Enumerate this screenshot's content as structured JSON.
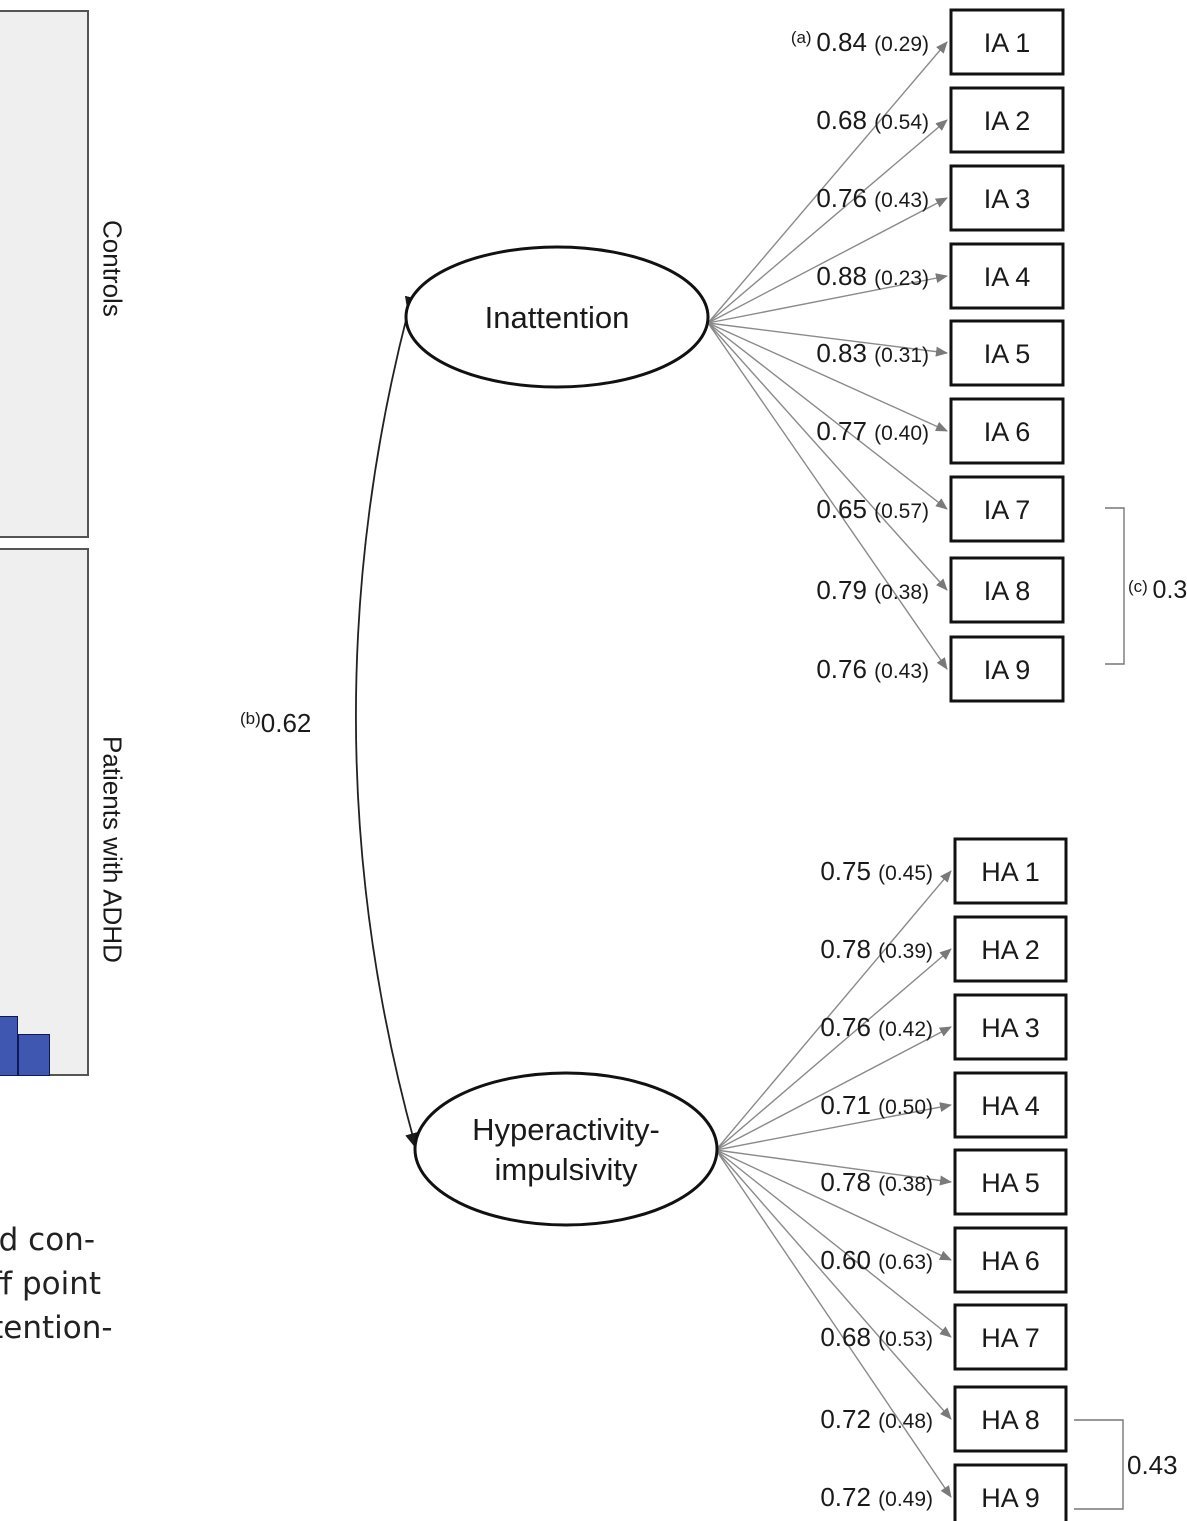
{
  "left_panels": {
    "top_label": "Controls",
    "bottom_label": "Patients with ADHD",
    "bar_color": "#3f57b0"
  },
  "caption_fragment": {
    "line1": "and con-",
    "line2": "-off point",
    "line3": "attention-"
  },
  "diagram": {
    "factors": [
      {
        "id": "inattention",
        "label_lines": [
          "Inattention"
        ]
      },
      {
        "id": "hyperactivity",
        "label_lines": [
          "Hyperactivity-",
          "impulsivity"
        ]
      }
    ],
    "factor_correlation": {
      "marker": "(b)",
      "value": "0.62"
    },
    "inattention_items": [
      {
        "label": "IA 1",
        "loading": "0.84",
        "residual": "(0.29)",
        "marker": "(a)"
      },
      {
        "label": "IA 2",
        "loading": "0.68",
        "residual": "(0.54)"
      },
      {
        "label": "IA 3",
        "loading": "0.76",
        "residual": "(0.43)"
      },
      {
        "label": "IA 4",
        "loading": "0.88",
        "residual": "(0.23)"
      },
      {
        "label": "IA 5",
        "loading": "0.83",
        "residual": "(0.31)"
      },
      {
        "label": "IA 6",
        "loading": "0.77",
        "residual": "(0.40)"
      },
      {
        "label": "IA 7",
        "loading": "0.65",
        "residual": "(0.57)"
      },
      {
        "label": "IA 8",
        "loading": "0.79",
        "residual": "(0.38)"
      },
      {
        "label": "IA 9",
        "loading": "0.76",
        "residual": "(0.43)"
      }
    ],
    "hyperactivity_items": [
      {
        "label": "HA 1",
        "loading": "0.75",
        "residual": "(0.45)"
      },
      {
        "label": "HA 2",
        "loading": "0.78",
        "residual": "(0.39)"
      },
      {
        "label": "HA 3",
        "loading": "0.76",
        "residual": "(0.42)"
      },
      {
        "label": "HA 4",
        "loading": "0.71",
        "residual": "(0.50)"
      },
      {
        "label": "HA 5",
        "loading": "0.78",
        "residual": "(0.38)"
      },
      {
        "label": "HA 6",
        "loading": "0.60",
        "residual": "(0.63)"
      },
      {
        "label": "HA 7",
        "loading": "0.68",
        "residual": "(0.53)"
      },
      {
        "label": "HA 8",
        "loading": "0.72",
        "residual": "(0.48)"
      },
      {
        "label": "HA 9",
        "loading": "0.72",
        "residual": "(0.49)"
      }
    ],
    "error_correlations": [
      {
        "between": [
          "IA 7",
          "IA 9"
        ],
        "marker": "(c)",
        "value": "0.3"
      },
      {
        "between": [
          "HA 8",
          "HA 9"
        ],
        "marker": "",
        "value": "0.43"
      }
    ],
    "colors": {
      "box_stroke": "#111111",
      "arrow": "#808080",
      "curve": "#222222"
    }
  }
}
